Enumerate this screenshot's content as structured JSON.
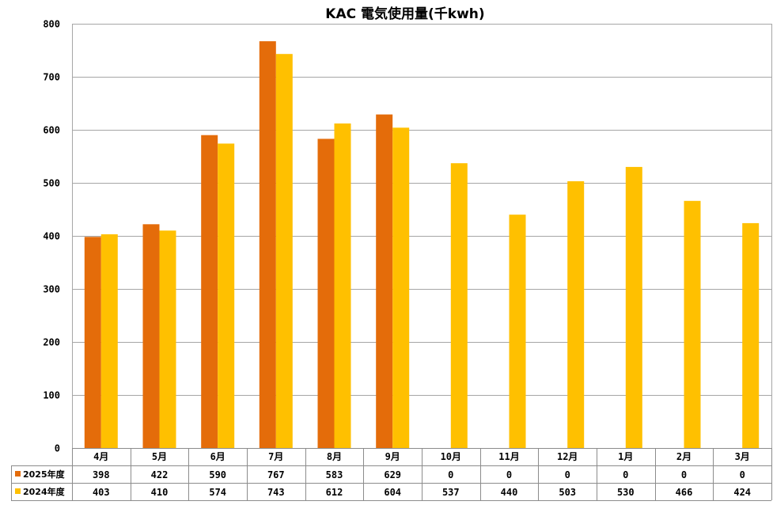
{
  "chart_data": {
    "type": "bar",
    "title": "KAC 電気使用量(千kwh)",
    "categories": [
      "4月",
      "5月",
      "6月",
      "7月",
      "8月",
      "9月",
      "10月",
      "11月",
      "12月",
      "1月",
      "2月",
      "3月"
    ],
    "series": [
      {
        "name": "2025年度",
        "color": "#E46C0A",
        "values": [
          398,
          422,
          590,
          767,
          583,
          629,
          0,
          0,
          0,
          0,
          0,
          0
        ]
      },
      {
        "name": "2024年度",
        "color": "#FFC000",
        "values": [
          403,
          410,
          574,
          743,
          612,
          604,
          537,
          440,
          503,
          530,
          466,
          424
        ]
      }
    ],
    "ylim": [
      0,
      800
    ],
    "yticks": [
      0,
      100,
      200,
      300,
      400,
      500,
      600,
      700,
      800
    ],
    "grid": true,
    "legend": "data-table"
  }
}
